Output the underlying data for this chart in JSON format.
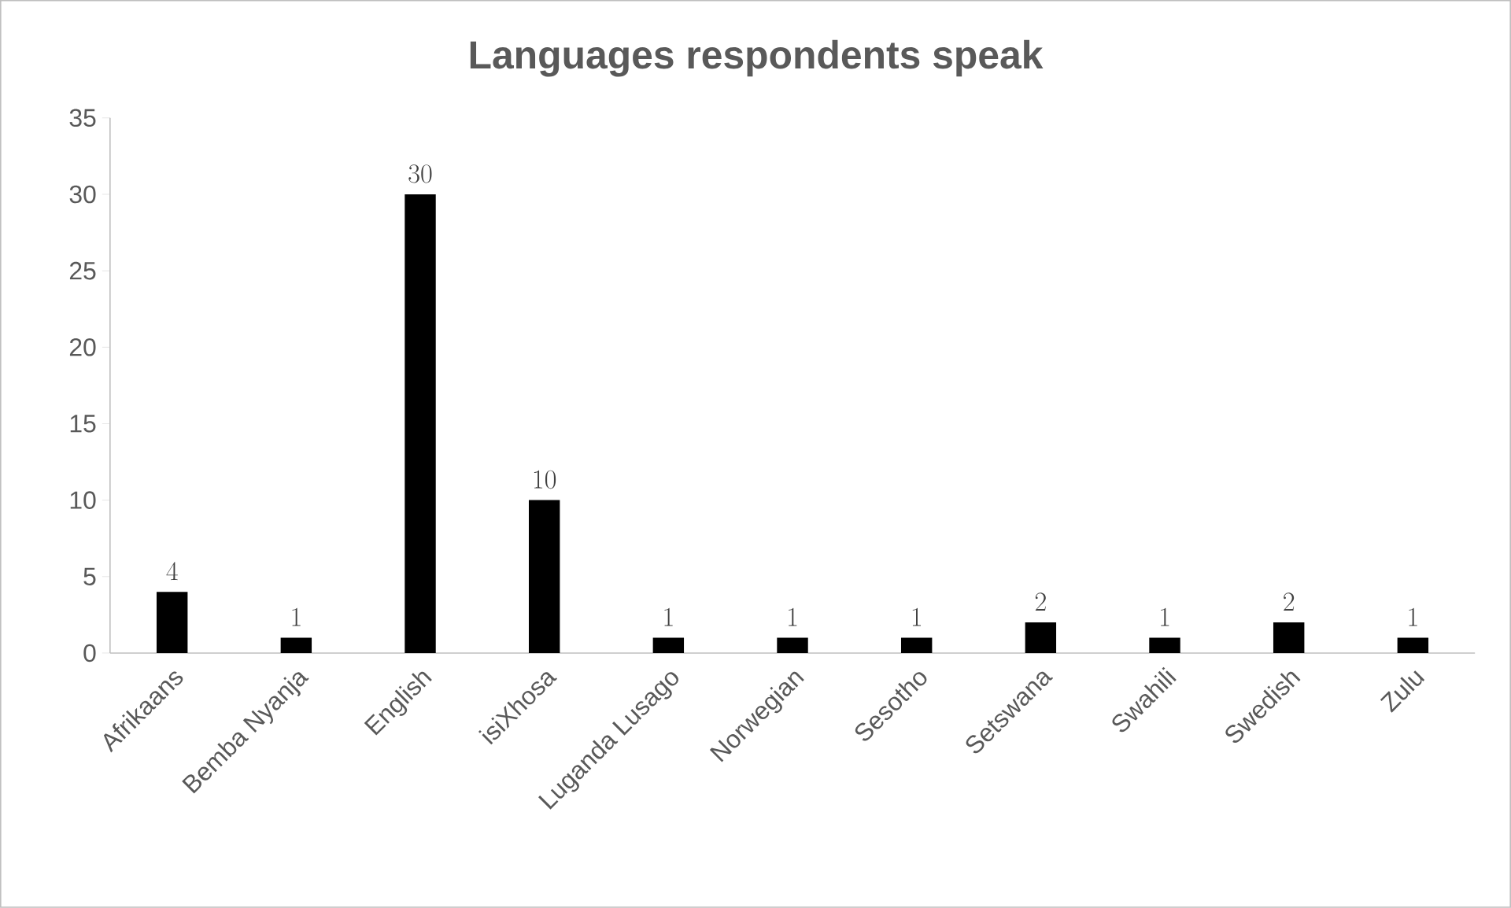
{
  "chart_data": {
    "type": "bar",
    "title": "Languages respondents speak",
    "categories": [
      "Afrikaans",
      "Bemba Nyanja",
      "English",
      "isiXhosa",
      "Luganda Lusago",
      "Norwegian",
      "Sesotho",
      "Setswana",
      "Swahili",
      "Swedish",
      "Zulu"
    ],
    "values": [
      4,
      1,
      30,
      10,
      1,
      1,
      1,
      2,
      1,
      2,
      1
    ],
    "color": "#000000",
    "ylim": [
      0,
      35
    ],
    "yticks": [
      0,
      5,
      10,
      15,
      20,
      25,
      30,
      35
    ],
    "data_labels": true
  }
}
